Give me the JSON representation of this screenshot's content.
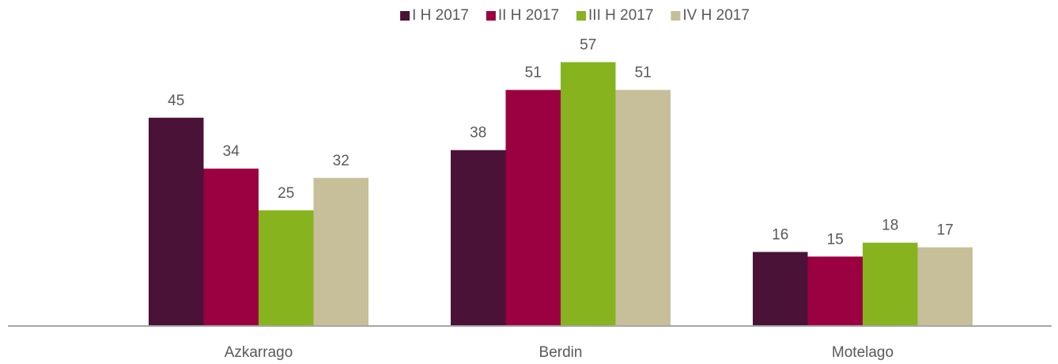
{
  "chart_data": {
    "type": "bar",
    "categories": [
      "Azkarrago",
      "Berdin",
      "Motelago"
    ],
    "series": [
      {
        "name": "I H 2017",
        "color": "#4b1238",
        "values": [
          45,
          38,
          16
        ]
      },
      {
        "name": "II H 2017",
        "color": "#9b0040",
        "values": [
          34,
          51,
          15
        ]
      },
      {
        "name": "III H 2017",
        "color": "#86b31e",
        "values": [
          25,
          57,
          18
        ]
      },
      {
        "name": "IV H 2017",
        "color": "#c6bf99",
        "values": [
          32,
          51,
          17
        ]
      }
    ],
    "ylim": [
      0,
      60
    ],
    "legend": "top"
  }
}
